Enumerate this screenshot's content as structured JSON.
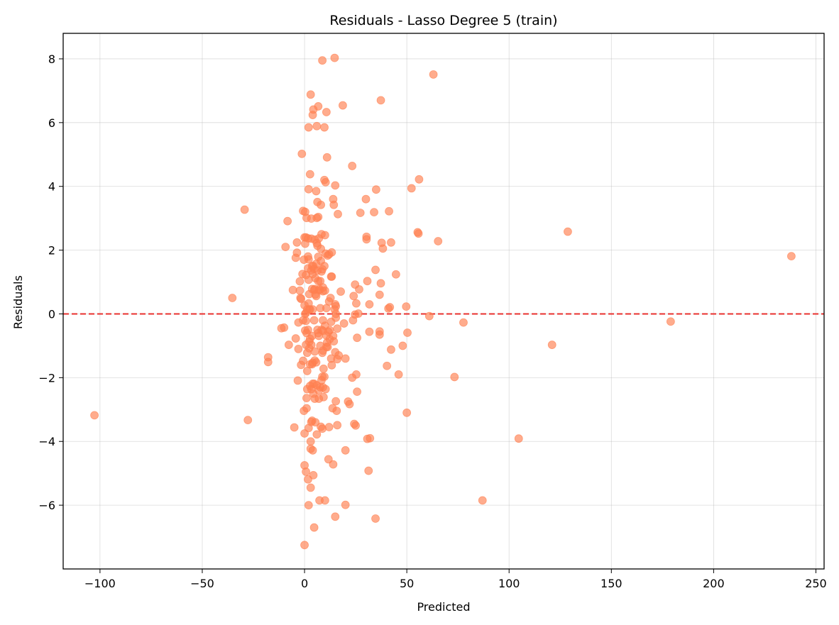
{
  "chart_data": {
    "type": "scatter",
    "title": "Residuals - Lasso Degree 5 (train)",
    "xlabel": "Predicted",
    "ylabel": "Residuals",
    "xlim": [
      -118,
      254
    ],
    "ylim": [
      -8.0,
      8.8
    ],
    "xticks": [
      -100,
      -50,
      0,
      50,
      100,
      150,
      200,
      250
    ],
    "yticks": [
      -6,
      -4,
      -2,
      0,
      2,
      4,
      6,
      8
    ],
    "xtick_labels": [
      "−100",
      "−50",
      "0",
      "50",
      "100",
      "150",
      "200",
      "250"
    ],
    "ytick_labels": [
      "−6",
      "−4",
      "−2",
      "0",
      "2",
      "4",
      "6",
      "8"
    ],
    "grid": true,
    "reference_line": {
      "y": 0,
      "style": "dashed",
      "color": "#e8302e"
    },
    "point_color": "#ff7f50",
    "point_alpha": 0.65,
    "points": [
      [
        -102.7,
        -3.18
      ],
      [
        -35.3,
        0.5
      ],
      [
        -29.3,
        3.27
      ],
      [
        -27.7,
        -3.33
      ],
      [
        -17.8,
        -1.36
      ],
      [
        -17.8,
        -1.51
      ],
      [
        -11.3,
        -0.45
      ],
      [
        -10.0,
        -0.43
      ],
      [
        -9.3,
        2.1
      ],
      [
        -8.3,
        2.91
      ],
      [
        -7.7,
        -0.97
      ],
      [
        -5.7,
        0.75
      ],
      [
        -5.0,
        -3.56
      ],
      [
        -4.3,
        -0.77
      ],
      [
        -4.3,
        1.76
      ],
      [
        -3.7,
        1.92
      ],
      [
        -3.7,
        2.24
      ],
      [
        -3.3,
        -2.09
      ],
      [
        -3.0,
        -1.1
      ],
      [
        -3.0,
        -0.27
      ],
      [
        -2.3,
        0.73
      ],
      [
        -2.3,
        1.02
      ],
      [
        -2.0,
        0.5
      ],
      [
        -1.7,
        -1.6
      ],
      [
        -1.7,
        0.47
      ],
      [
        -1.3,
        5.02
      ],
      [
        -1.0,
        1.25
      ],
      [
        -0.7,
        -1.47
      ],
      [
        -0.7,
        3.23
      ],
      [
        -0.7,
        -0.2
      ],
      [
        -0.3,
        1.7
      ],
      [
        -0.3,
        -3.04
      ],
      [
        0.0,
        -3.75
      ],
      [
        0.0,
        2.4
      ],
      [
        0.0,
        -4.75
      ],
      [
        0.0,
        -7.25
      ],
      [
        0.0,
        0.27
      ],
      [
        0.3,
        3.2
      ],
      [
        0.3,
        2.2
      ],
      [
        0.3,
        -0.52
      ],
      [
        0.3,
        0.0
      ],
      [
        0.7,
        2.4
      ],
      [
        0.7,
        -0.97
      ],
      [
        0.7,
        1.22
      ],
      [
        0.7,
        0.03
      ],
      [
        0.7,
        -4.95
      ],
      [
        0.7,
        -0.22
      ],
      [
        1.0,
        -2.96
      ],
      [
        1.0,
        -2.64
      ],
      [
        1.0,
        -0.6
      ],
      [
        1.0,
        3.01
      ],
      [
        1.3,
        -1.22
      ],
      [
        1.3,
        -2.36
      ],
      [
        1.3,
        0.14
      ],
      [
        1.3,
        -1.79
      ],
      [
        1.7,
        -5.19
      ],
      [
        1.7,
        2.37
      ],
      [
        1.7,
        1.43
      ],
      [
        1.7,
        1.8
      ],
      [
        1.7,
        -0.5
      ],
      [
        2.0,
        3.91
      ],
      [
        2.0,
        1.71
      ],
      [
        2.0,
        1.07
      ],
      [
        2.0,
        -6.0
      ],
      [
        2.0,
        0.33
      ],
      [
        2.0,
        5.85
      ],
      [
        2.0,
        -3.58
      ],
      [
        2.3,
        -0.87
      ],
      [
        2.3,
        -1.08
      ],
      [
        2.3,
        0.62
      ],
      [
        2.3,
        0.14
      ],
      [
        2.7,
        0.14
      ],
      [
        2.7,
        -2.26
      ],
      [
        2.7,
        -0.78
      ],
      [
        2.7,
        4.38
      ],
      [
        2.7,
        -1.58
      ],
      [
        3.0,
        6.88
      ],
      [
        3.0,
        -4.0
      ],
      [
        3.0,
        -4.23
      ],
      [
        3.0,
        -5.45
      ],
      [
        3.3,
        -0.97
      ],
      [
        3.3,
        1.36
      ],
      [
        3.3,
        -3.39
      ],
      [
        3.3,
        2.36
      ],
      [
        3.3,
        -2.36
      ],
      [
        3.3,
        2.99
      ],
      [
        3.7,
        -1.58
      ],
      [
        3.7,
        -0.69
      ],
      [
        3.7,
        0.78
      ],
      [
        3.7,
        1.5
      ],
      [
        3.7,
        -3.35
      ],
      [
        4.0,
        1.25
      ],
      [
        4.0,
        -4.28
      ],
      [
        4.0,
        0.14
      ],
      [
        4.0,
        -2.19
      ],
      [
        4.0,
        -1.53
      ],
      [
        4.0,
        6.24
      ],
      [
        4.3,
        -5.06
      ],
      [
        4.3,
        -2.5
      ],
      [
        4.3,
        1.5
      ],
      [
        4.3,
        6.41
      ],
      [
        4.7,
        -2.19
      ],
      [
        4.7,
        0.75
      ],
      [
        4.7,
        -6.7
      ],
      [
        4.7,
        1.41
      ],
      [
        4.7,
        -0.2
      ],
      [
        5.0,
        -1.46
      ],
      [
        5.0,
        -2.66
      ],
      [
        5.0,
        0.78
      ],
      [
        5.0,
        2.33
      ],
      [
        5.0,
        -1.18
      ],
      [
        5.3,
        0.61
      ],
      [
        5.3,
        -3.4
      ],
      [
        5.3,
        1.12
      ],
      [
        5.7,
        3.85
      ],
      [
        5.7,
        0.56
      ],
      [
        5.7,
        1.57
      ],
      [
        5.7,
        -1.52
      ],
      [
        6.0,
        3.01
      ],
      [
        6.0,
        5.89
      ],
      [
        6.0,
        2.22
      ],
      [
        6.0,
        -3.78
      ],
      [
        6.0,
        -2.24
      ],
      [
        6.3,
        -0.5
      ],
      [
        6.3,
        2.14
      ],
      [
        6.3,
        1.36
      ],
      [
        6.3,
        3.51
      ],
      [
        6.7,
        6.51
      ],
      [
        6.7,
        -0.6
      ],
      [
        6.7,
        1.03
      ],
      [
        6.7,
        3.04
      ],
      [
        6.7,
        1.79
      ],
      [
        7.0,
        -2.66
      ],
      [
        7.0,
        -0.69
      ],
      [
        7.0,
        -2.4
      ],
      [
        7.0,
        2.37
      ],
      [
        7.3,
        0.74
      ],
      [
        7.3,
        0.78
      ],
      [
        7.3,
        -5.85
      ],
      [
        7.7,
        0.18
      ],
      [
        7.7,
        -2.3
      ],
      [
        7.7,
        -1.0
      ],
      [
        7.7,
        1.03
      ],
      [
        8.0,
        1.66
      ],
      [
        8.0,
        2.04
      ],
      [
        8.0,
        -3.54
      ],
      [
        8.0,
        3.42
      ],
      [
        8.3,
        2.5
      ],
      [
        8.3,
        -0.5
      ],
      [
        8.3,
        1.33
      ],
      [
        8.3,
        -2.08
      ],
      [
        8.7,
        7.95
      ],
      [
        8.7,
        -3.6
      ],
      [
        8.7,
        -1.97
      ],
      [
        8.7,
        1.4
      ],
      [
        8.7,
        -1.22
      ],
      [
        9.0,
        -0.2
      ],
      [
        9.0,
        -2.3
      ],
      [
        9.0,
        0.71
      ],
      [
        9.0,
        0.83
      ],
      [
        9.0,
        -0.53
      ],
      [
        9.0,
        -1.15
      ],
      [
        9.3,
        -1.72
      ],
      [
        9.3,
        -2.61
      ],
      [
        9.7,
        -1.97
      ],
      [
        9.7,
        4.2
      ],
      [
        9.7,
        5.85
      ],
      [
        9.7,
        1.5
      ],
      [
        10.0,
        -5.85
      ],
      [
        10.0,
        2.47
      ],
      [
        10.0,
        0.73
      ],
      [
        10.0,
        -0.37
      ],
      [
        10.3,
        -2.36
      ],
      [
        10.3,
        1.89
      ],
      [
        10.3,
        4.13
      ],
      [
        10.7,
        -1.03
      ],
      [
        10.7,
        6.33
      ],
      [
        10.7,
        -0.68
      ],
      [
        10.7,
        0.18
      ],
      [
        11.0,
        4.91
      ],
      [
        11.0,
        -0.9
      ],
      [
        11.3,
        -1.04
      ],
      [
        11.3,
        1.83
      ],
      [
        11.7,
        -4.56
      ],
      [
        11.7,
        -0.56
      ],
      [
        12.0,
        0.39
      ],
      [
        12.0,
        1.87
      ],
      [
        12.0,
        -3.55
      ],
      [
        12.3,
        -0.79
      ],
      [
        12.3,
        -0.51
      ],
      [
        12.7,
        0.5
      ],
      [
        13.0,
        -1.4
      ],
      [
        13.0,
        1.17
      ],
      [
        13.0,
        -0.25
      ],
      [
        13.3,
        1.17
      ],
      [
        13.3,
        -1.61
      ],
      [
        13.3,
        1.93
      ],
      [
        13.7,
        -2.96
      ],
      [
        14.0,
        3.6
      ],
      [
        14.0,
        -0.69
      ],
      [
        14.0,
        -4.72
      ],
      [
        14.3,
        3.42
      ],
      [
        14.3,
        -0.86
      ],
      [
        14.7,
        8.03
      ],
      [
        14.7,
        0.14
      ],
      [
        15.0,
        4.03
      ],
      [
        15.0,
        -6.36
      ],
      [
        15.0,
        -1.2
      ],
      [
        15.0,
        0.3
      ],
      [
        15.3,
        -2.74
      ],
      [
        15.3,
        0.24
      ],
      [
        15.3,
        -0.12
      ],
      [
        15.3,
        0.0
      ],
      [
        15.7,
        -3.04
      ],
      [
        16.0,
        -0.46
      ],
      [
        16.0,
        -1.42
      ],
      [
        16.0,
        -3.49
      ],
      [
        16.3,
        3.13
      ],
      [
        16.7,
        -1.3
      ],
      [
        17.7,
        0.7
      ],
      [
        18.7,
        6.54
      ],
      [
        19.3,
        -0.3
      ],
      [
        20.0,
        -5.99
      ],
      [
        20.0,
        -4.28
      ],
      [
        20.0,
        -1.4
      ],
      [
        21.3,
        -2.75
      ],
      [
        22.0,
        -2.83
      ],
      [
        23.3,
        4.64
      ],
      [
        23.3,
        -2.0
      ],
      [
        23.7,
        -0.2
      ],
      [
        24.0,
        0.56
      ],
      [
        24.3,
        -3.45
      ],
      [
        24.7,
        -0.02
      ],
      [
        24.7,
        0.92
      ],
      [
        25.0,
        -3.5
      ],
      [
        25.3,
        -1.9
      ],
      [
        25.3,
        0.33
      ],
      [
        25.7,
        -2.44
      ],
      [
        25.7,
        -0.75
      ],
      [
        26.3,
        0.01
      ],
      [
        26.7,
        0.77
      ],
      [
        27.3,
        3.17
      ],
      [
        30.0,
        3.6
      ],
      [
        30.3,
        2.42
      ],
      [
        30.3,
        2.34
      ],
      [
        30.7,
        1.03
      ],
      [
        30.7,
        -3.92
      ],
      [
        31.3,
        -4.92
      ],
      [
        31.7,
        -0.56
      ],
      [
        31.7,
        0.3
      ],
      [
        32.0,
        -3.9
      ],
      [
        34.0,
        3.19
      ],
      [
        34.7,
        1.38
      ],
      [
        34.7,
        -6.42
      ],
      [
        35.0,
        3.9
      ],
      [
        36.7,
        -0.55
      ],
      [
        36.7,
        -0.65
      ],
      [
        36.7,
        0.6
      ],
      [
        37.3,
        6.7
      ],
      [
        37.3,
        0.96
      ],
      [
        37.7,
        2.23
      ],
      [
        38.3,
        2.05
      ],
      [
        40.3,
        -1.63
      ],
      [
        41.0,
        0.17
      ],
      [
        41.3,
        3.22
      ],
      [
        41.7,
        0.21
      ],
      [
        42.3,
        2.24
      ],
      [
        42.3,
        -1.12
      ],
      [
        44.7,
        1.24
      ],
      [
        46.0,
        -1.9
      ],
      [
        48.0,
        -1.0
      ],
      [
        49.7,
        0.23
      ],
      [
        50.0,
        -3.1
      ],
      [
        50.3,
        -0.59
      ],
      [
        52.3,
        3.94
      ],
      [
        55.3,
        2.56
      ],
      [
        55.7,
        2.52
      ],
      [
        56.0,
        4.22
      ],
      [
        61.0,
        -0.07
      ],
      [
        63.0,
        7.51
      ],
      [
        65.3,
        2.28
      ],
      [
        73.3,
        -1.98
      ],
      [
        77.7,
        -0.27
      ],
      [
        87.0,
        -5.85
      ],
      [
        104.7,
        -3.91
      ],
      [
        121.0,
        -0.97
      ],
      [
        128.7,
        2.58
      ],
      [
        179.0,
        -0.24
      ],
      [
        238.0,
        1.81
      ]
    ]
  }
}
